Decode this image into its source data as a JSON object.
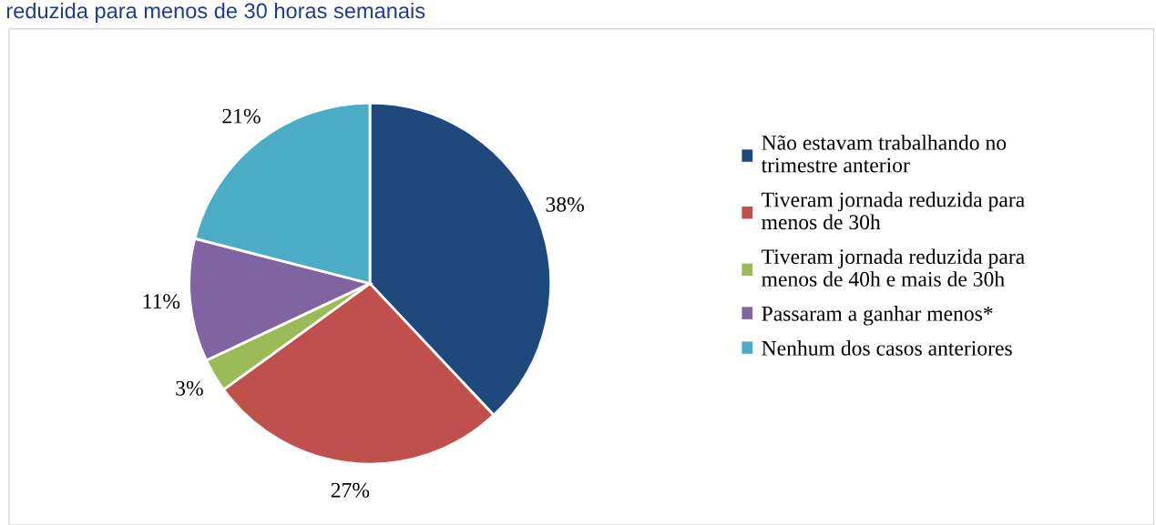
{
  "chart_data": {
    "type": "pie",
    "title": "reduzida para menos de 30 horas semanais",
    "categories": [
      "Não estavam trabalhando no trimestre anterior",
      "Tiveram jornada reduzida para menos de 30h",
      "Tiveram jornada reduzida para menos de 40h e mais de 30h",
      "Passaram a ganhar menos*",
      "Nenhum dos casos anteriores"
    ],
    "values": [
      38,
      27,
      3,
      11,
      21
    ],
    "colors": [
      "#1f497d",
      "#c0504d",
      "#9bbb59",
      "#8064a2",
      "#4bacc6"
    ],
    "value_labels": [
      "38%",
      "27%",
      "3%",
      "11%",
      "21%"
    ],
    "legend": "right"
  }
}
